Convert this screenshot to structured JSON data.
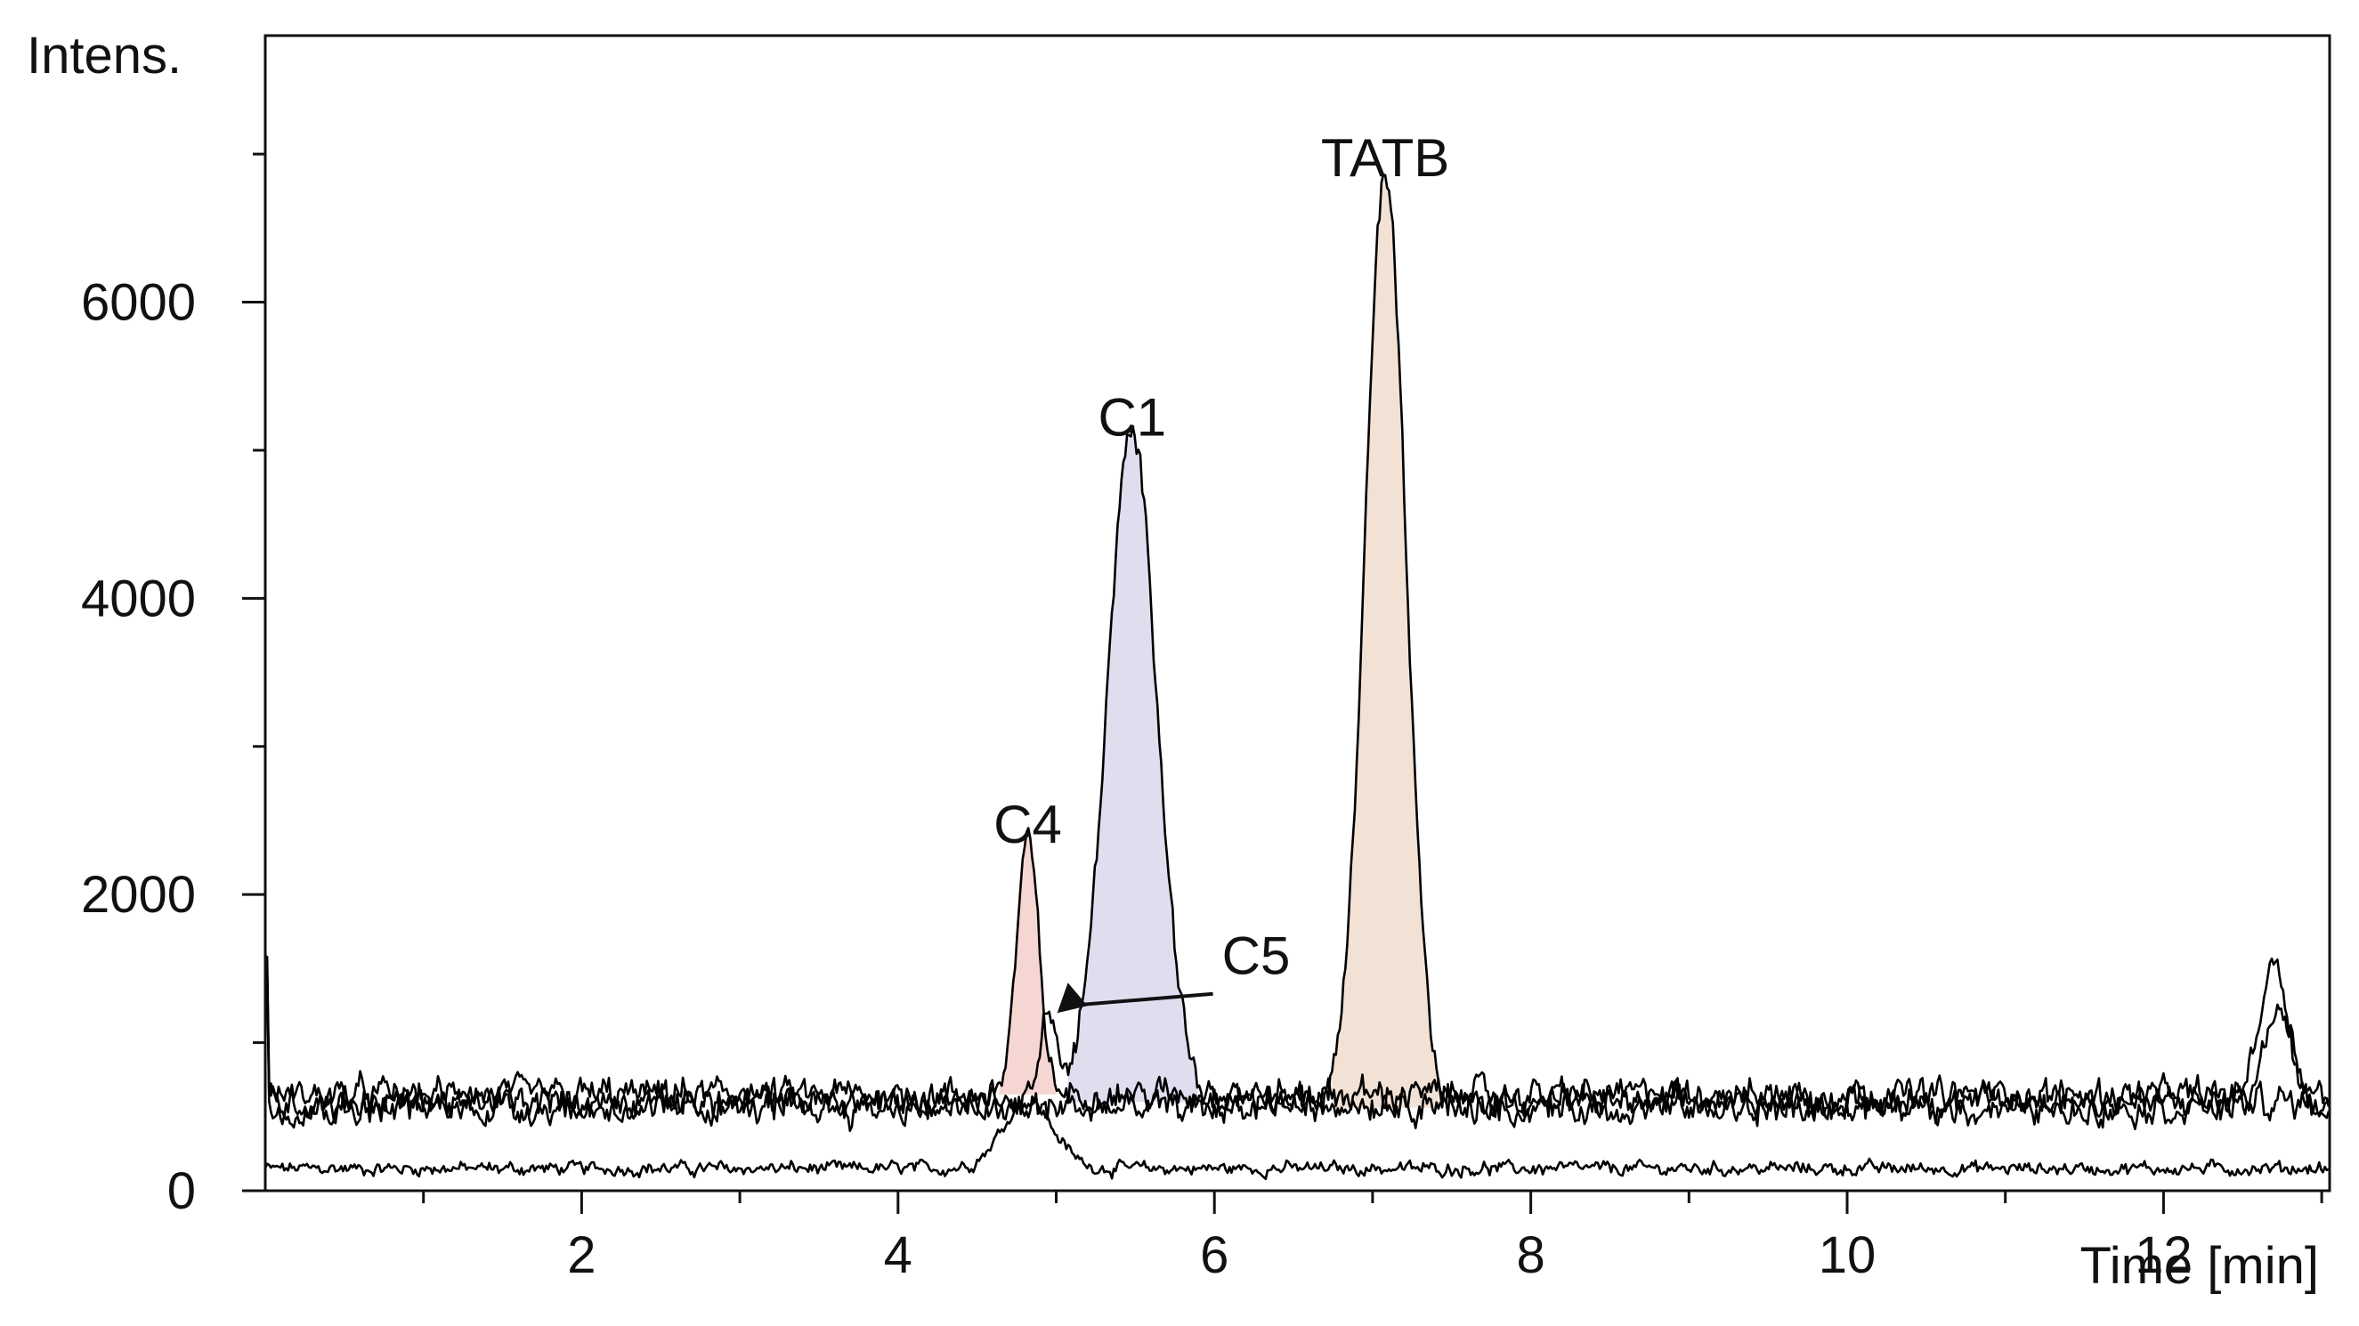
{
  "chart_data": {
    "type": "line",
    "title": "",
    "xlabel": "Time [min]",
    "ylabel": "Intens.",
    "xlim": [
      0,
      13.05
    ],
    "ylim": [
      0,
      7800
    ],
    "x_ticks": [
      2,
      4,
      6,
      8,
      10,
      12
    ],
    "y_ticks": [
      0,
      2000,
      4000,
      6000
    ],
    "grid": false,
    "legend": "none",
    "series": [
      {
        "baseline": 150,
        "noise": 60,
        "peaks": [
          [
            4.82,
            450,
            0.16
          ],
          [
            7.55,
            0,
            0.1
          ]
        ],
        "fill_peak": 4.9,
        "fill_color": "#d9d9d9"
      },
      {
        "baseline": 650,
        "noise": 140,
        "peaks": [
          [
            4.82,
            1700,
            0.07
          ],
          [
            12.7,
            900,
            0.09
          ]
        ],
        "fill_peak": 4.82,
        "fill_color": "#f6d6d2"
      },
      {
        "baseline": 600,
        "noise": 140,
        "peaks": [
          [
            5.48,
            4500,
            0.16
          ],
          [
            4.95,
            650,
            0.05
          ]
        ],
        "fill_peak": 5.48,
        "fill_color": "#e2dcef"
      },
      {
        "baseline": 560,
        "noise": 140,
        "peaks": [
          [
            7.08,
            6250,
            0.13
          ],
          [
            12.72,
            700,
            0.08
          ]
        ],
        "fill_peak": 7.08,
        "fill_color": "#f2e1d5"
      }
    ],
    "annotations": [
      {
        "text": "TATB",
        "x": 7.08,
        "y": 6850
      },
      {
        "text": "C1",
        "x": 5.48,
        "y": 5100
      },
      {
        "text": "C4",
        "x": 4.82,
        "y": 2350
      },
      {
        "text": "C5",
        "x": 4.95,
        "y": 1450,
        "arrow": true
      }
    ]
  }
}
